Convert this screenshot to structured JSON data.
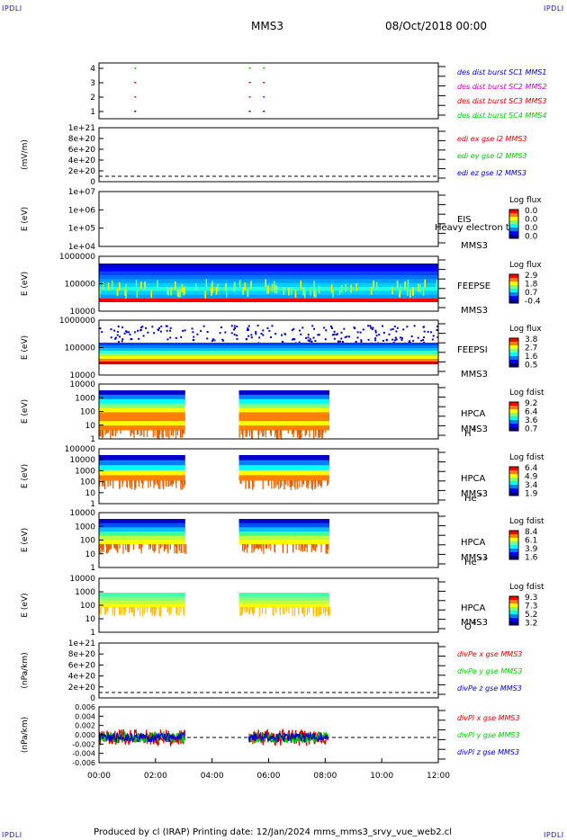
{
  "corners": {
    "tl": "IPDLI",
    "tr": "IPDLI",
    "bl": "IPDLI",
    "br": "IPDLI"
  },
  "header": {
    "mission": "MMS3",
    "date": "08/Oct/2018 00:00"
  },
  "footer": {
    "text": "Produced by cl (IRAP)   Printing date: 12/Jan/2024   mms_mms3_srvy_vue_web2.cl"
  },
  "colors": {
    "blue": "#0000cc",
    "magenta": "#cc00cc",
    "red": "#dd0000",
    "green": "#00cc00"
  },
  "chart_data": [
    {
      "type": "scatter",
      "name": "burst",
      "yticks": [
        "4",
        "3",
        "2",
        "1"
      ],
      "legend": [
        {
          "label": "des dist burst SC1 MMS1",
          "color": "#0000cc"
        },
        {
          "label": "des dist burst SC2 MMS2",
          "color": "#cc00cc"
        },
        {
          "label": "des dist burst SC3 MMS3",
          "color": "#dd0000"
        },
        {
          "label": "des dist burst SC4 MMS4",
          "color": "#00cc00"
        }
      ]
    },
    {
      "type": "line",
      "ylabel": "(mV/m)",
      "yticks": [
        "1e+21",
        "8e+20",
        "6e+20",
        "4e+20",
        "2e+20",
        "0"
      ],
      "legend": [
        {
          "label": "edi ex gse l2 MMS3",
          "color": "#dd0000"
        },
        {
          "label": "edi ey gse l2 MMS3",
          "color": "#00cc00"
        },
        {
          "label": "edi ez gse l2 MMS3",
          "color": "#0000cc"
        }
      ]
    },
    {
      "type": "heatmap",
      "ylabel": "E (eV)",
      "yticks": [
        "1e+07",
        "1e+06",
        "1e+05",
        "1e+04"
      ],
      "instrument": "EIS",
      "sc": "MMS3",
      "note": "Heavy electron to",
      "cbar_title": "Log flux",
      "cbar": [
        "0.0",
        "0.0",
        "0.0",
        "0.0"
      ]
    },
    {
      "type": "heatmap",
      "ylabel": "E (eV)",
      "yticks": [
        "1000000",
        "100000",
        "10000"
      ],
      "instrument": "FEEPSE",
      "sc": "MMS3",
      "cbar_title": "Log flux",
      "cbar": [
        "2.9",
        "1.8",
        "0.7",
        "-0.4"
      ]
    },
    {
      "type": "heatmap",
      "ylabel": "E (eV)",
      "yticks": [
        "1000000",
        "100000",
        "10000"
      ],
      "instrument": "FEEPSI",
      "sc": "MMS3",
      "cbar_title": "Log flux",
      "cbar": [
        "3.8",
        "2.7",
        "1.6",
        "0.5"
      ]
    },
    {
      "type": "heatmap",
      "ylabel": "E (eV)",
      "yticks": [
        "10000",
        "1000",
        "100",
        "10",
        "1"
      ],
      "instrument": "HPCA",
      "sc": "MMS3",
      "species": "H",
      "charge": "+",
      "cbar_title": "Log fdist",
      "cbar": [
        "9.2",
        "6.4",
        "3.6",
        "0.7"
      ]
    },
    {
      "type": "heatmap",
      "ylabel": "E (eV)",
      "yticks": [
        "100000",
        "10000",
        "1000",
        "100",
        "10",
        "1"
      ],
      "instrument": "HPCA",
      "sc": "MMS3",
      "species": "He",
      "charge": "+",
      "cbar_title": "Log fdist",
      "cbar": [
        "6.4",
        "4.9",
        "3.4",
        "1.9"
      ]
    },
    {
      "type": "heatmap",
      "ylabel": "E (eV)",
      "yticks": [
        "10000",
        "1000",
        "100",
        "10",
        "1"
      ],
      "instrument": "HPCA",
      "sc": "MMS3",
      "species": "He",
      "charge": "++",
      "cbar_title": "Log fdist",
      "cbar": [
        "8.4",
        "6.1",
        "3.9",
        "1.6"
      ]
    },
    {
      "type": "heatmap",
      "ylabel": "E (eV)",
      "yticks": [
        "10000",
        "1000",
        "100",
        "10",
        "1"
      ],
      "instrument": "HPCA",
      "sc": "MMS3",
      "species": "O",
      "charge": "+",
      "cbar_title": "Log fdist",
      "cbar": [
        "9.3",
        "7.3",
        "5.2",
        "3.2"
      ]
    },
    {
      "type": "line",
      "ylabel": "(nPa/km)",
      "yticks": [
        "1e+21",
        "8e+20",
        "6e+20",
        "4e+20",
        "2e+20",
        "0"
      ],
      "legend": [
        {
          "label": "divPe x gse MMS3",
          "color": "#dd0000"
        },
        {
          "label": "divPe y gse MMS3",
          "color": "#00cc00"
        },
        {
          "label": "divPe z gse MMS3",
          "color": "#0000cc"
        }
      ]
    },
    {
      "type": "line",
      "ylabel": "(nPa/km)",
      "yticks": [
        "0.006",
        "0.004",
        "0.002",
        "0.000",
        "-0.002",
        "-0.004",
        "-0.006"
      ],
      "legend": [
        {
          "label": "divPi x gse MMS3",
          "color": "#dd0000"
        },
        {
          "label": "divPi y gse MMS3",
          "color": "#00cc00"
        },
        {
          "label": "divPi z gse MMS3",
          "color": "#0000cc"
        }
      ]
    }
  ],
  "xaxis": {
    "ticks": [
      "00:00",
      "02:00",
      "04:00",
      "06:00",
      "08:00",
      "10:00",
      "12:00"
    ]
  }
}
